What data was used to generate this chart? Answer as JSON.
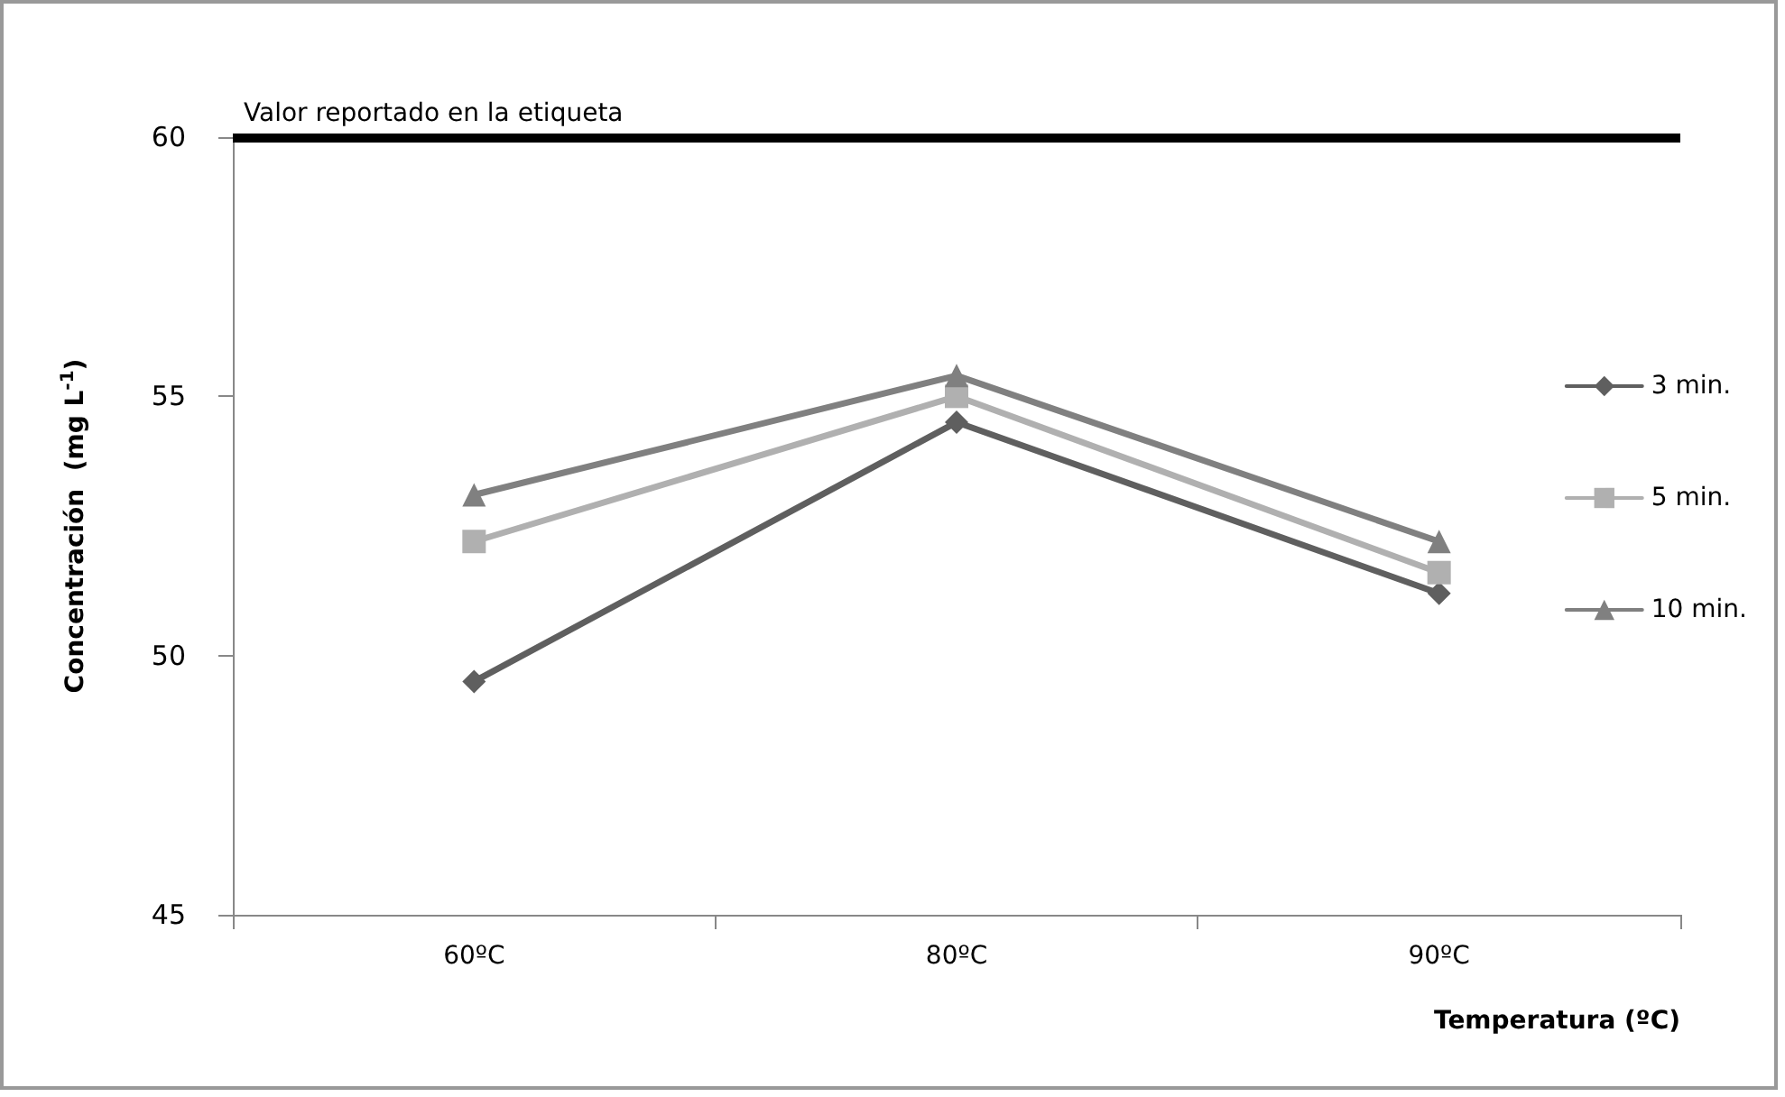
{
  "chart_data": {
    "type": "line",
    "xlabel": "Temperatura (ºC)",
    "ylabel": "Concentración  (mg L$^{-1}$)",
    "categories": [
      "60ºC",
      "80ºC",
      "90ºC"
    ],
    "series": [
      {
        "name": "3 min.",
        "color": "#5f5f5f",
        "marker": "diamond",
        "values": [
          49.5,
          54.5,
          51.2
        ]
      },
      {
        "name": "5 min.",
        "color": "#b0b0b0",
        "marker": "square",
        "values": [
          52.2,
          55.0,
          51.6
        ]
      },
      {
        "name": "10 min.",
        "color": "#808080",
        "marker": "triangle",
        "values": [
          53.1,
          55.4,
          52.2
        ]
      }
    ],
    "ylim": [
      45,
      60
    ],
    "yticks": [
      45,
      50,
      55,
      60
    ],
    "grid": false,
    "legend": "right",
    "line_style": "solid",
    "ref_lines": [
      {
        "axis": "y",
        "value": 60,
        "label": "Valor reportado en la etiqueta",
        "color": "#000000"
      }
    ]
  }
}
